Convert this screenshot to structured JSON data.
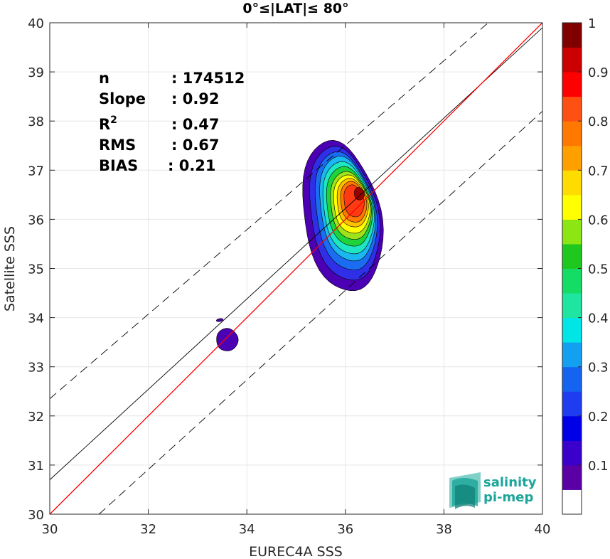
{
  "chart_data": {
    "type": "contour",
    "title": "0°≤|LAT|≤ 80°",
    "xlabel": "EUREC4A SSS",
    "ylabel": "Satellite SSS",
    "xlim": [
      30,
      40
    ],
    "ylim": [
      30,
      40
    ],
    "xticks": [
      "30",
      "32",
      "34",
      "36",
      "38",
      "40"
    ],
    "yticks": [
      "30",
      "31",
      "32",
      "33",
      "34",
      "35",
      "36",
      "37",
      "38",
      "39",
      "40"
    ],
    "grid": true,
    "stats": [
      {
        "label": "n",
        "value": ": 174512"
      },
      {
        "label": "Slope",
        "value": ": 0.92"
      },
      {
        "label": "R",
        "sup": "2",
        "value": ": 0.47"
      },
      {
        "label": "RMS",
        "value": ": 0.67"
      },
      {
        "label": "BIAS",
        "value": ": 0.21"
      }
    ],
    "lines": {
      "one_to_one": {
        "color": "#ff0000",
        "points": [
          [
            30,
            30
          ],
          [
            40,
            40
          ]
        ]
      },
      "regression": {
        "color": "#000000",
        "points": [
          [
            30,
            30.7
          ],
          [
            40,
            39.9
          ]
        ]
      },
      "upper_bound": {
        "color": "#000000",
        "dashed": true,
        "points": [
          [
            30,
            32.35
          ],
          [
            38.9,
            40
          ]
        ]
      },
      "lower_bound": {
        "color": "#000000",
        "dashed": true,
        "points": [
          [
            31.0,
            30
          ],
          [
            40,
            38.2
          ]
        ]
      }
    },
    "contour_levels": [
      {
        "level": 0.05,
        "color": "#4b00b3",
        "cx": 35.93,
        "cy": 36.05,
        "rx": 0.78,
        "ry": 1.55
      },
      {
        "level": 0.15,
        "color": "#2f2fe8",
        "cx": 35.97,
        "cy": 36.1,
        "rx": 0.68,
        "ry": 1.38
      },
      {
        "level": 0.25,
        "color": "#1a6cf0",
        "cx": 36.0,
        "cy": 36.15,
        "rx": 0.6,
        "ry": 1.22
      },
      {
        "level": 0.35,
        "color": "#1ab7f0",
        "cx": 36.03,
        "cy": 36.2,
        "rx": 0.54,
        "ry": 1.08
      },
      {
        "level": 0.45,
        "color": "#1ee6c2",
        "cx": 36.05,
        "cy": 36.22,
        "rx": 0.5,
        "ry": 0.95
      },
      {
        "level": 0.55,
        "color": "#1fd43a",
        "cx": 36.07,
        "cy": 36.25,
        "rx": 0.45,
        "ry": 0.82
      },
      {
        "level": 0.6,
        "color": "#9ee21c",
        "cx": 36.1,
        "cy": 36.27,
        "rx": 0.4,
        "ry": 0.7
      },
      {
        "level": 0.65,
        "color": "#ffff00",
        "cx": 36.12,
        "cy": 36.3,
        "rx": 0.36,
        "ry": 0.6
      },
      {
        "level": 0.75,
        "color": "#ffc000",
        "cx": 36.14,
        "cy": 36.33,
        "rx": 0.31,
        "ry": 0.5
      },
      {
        "level": 0.8,
        "color": "#ff7800",
        "cx": 36.16,
        "cy": 36.35,
        "rx": 0.26,
        "ry": 0.42
      },
      {
        "level": 0.85,
        "color": "#ff3a12",
        "cx": 36.17,
        "cy": 36.37,
        "rx": 0.2,
        "ry": 0.33
      },
      {
        "level": 0.95,
        "color": "#990000",
        "cx": 36.28,
        "cy": 36.52,
        "rx": 0.1,
        "ry": 0.13
      }
    ],
    "small_blob": {
      "color": "#4b00b3",
      "cx": 33.6,
      "cy": 33.55,
      "rx": 0.22,
      "ry": 0.23
    },
    "tiny_blob": {
      "color": "#4b00b3",
      "cx": 33.45,
      "cy": 33.95,
      "rx": 0.07,
      "ry": 0.03
    },
    "colorbar": {
      "ticks": [
        "0.1",
        "0.2",
        "0.3",
        "0.4",
        "0.5",
        "0.6",
        "0.7",
        "0.8",
        "0.9",
        "1"
      ],
      "colors": [
        "#ffffff",
        "#5a00a5",
        "#3a00cc",
        "#0000e6",
        "#1e3cf0",
        "#1464f0",
        "#14a0f0",
        "#00e6e6",
        "#1ee6a0",
        "#14dc64",
        "#1ec81e",
        "#8ce614",
        "#ffff00",
        "#ffdc00",
        "#ffa000",
        "#ff7800",
        "#ff5014",
        "#ff0000",
        "#cc0000",
        "#800000"
      ]
    }
  },
  "logo": {
    "line1": "salinity",
    "line2": "pi-mep",
    "icon": "salinity-waves-icon"
  }
}
